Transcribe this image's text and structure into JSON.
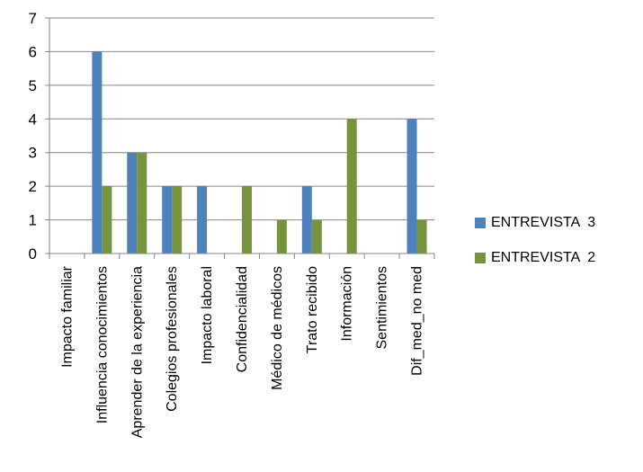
{
  "chart_data": {
    "type": "bar",
    "categories": [
      "Impacto familiar",
      "Influencia conocimientos",
      "Aprender de la experiencia",
      "Colegios profesionales",
      "Impacto laboral",
      "Confidencialidad",
      "Médico de médicos",
      "Trato recibido",
      "Información",
      "Sentimientos",
      "Dif_med_no med"
    ],
    "series": [
      {
        "name": "ENTREVISTA  3",
        "color": "#4F81BD",
        "values": [
          0,
          6,
          3,
          2,
          2,
          0,
          0,
          2,
          0,
          0,
          4
        ]
      },
      {
        "name": "ENTREVISTA  2",
        "color": "#77933C",
        "values": [
          0,
          2,
          3,
          2,
          0,
          2,
          1,
          1,
          4,
          0,
          1
        ]
      }
    ],
    "ylim": [
      0,
      7
    ],
    "yticks": [
      "0",
      "1",
      "2",
      "3",
      "4",
      "5",
      "6",
      "7"
    ],
    "grid": true,
    "legend_position": "right"
  }
}
